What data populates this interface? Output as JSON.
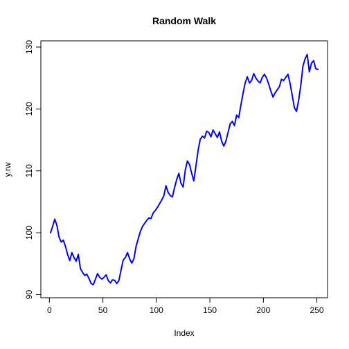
{
  "chart_data": {
    "type": "line",
    "title": "Random Walk",
    "xlabel": "Index",
    "ylabel": "y.rw",
    "xlim": [
      -8,
      260
    ],
    "ylim": [
      89.5,
      131
    ],
    "xticks": [
      0,
      50,
      100,
      150,
      200,
      250
    ],
    "yticks": [
      90,
      100,
      110,
      120,
      130
    ],
    "grid": false,
    "legend": "none",
    "line_color": "#0000ff",
    "series": [
      {
        "x": [
          1,
          3,
          5,
          7,
          9,
          11,
          13,
          15,
          17,
          19,
          21,
          23,
          25,
          27,
          29,
          31,
          33,
          35,
          37,
          39,
          41,
          43,
          45,
          47,
          49,
          51,
          53,
          55,
          57,
          59,
          61,
          63,
          65,
          67,
          69,
          71,
          73,
          75,
          77,
          79,
          81,
          83,
          85,
          87,
          89,
          91,
          93,
          95,
          97,
          99,
          101,
          103,
          105,
          107,
          109,
          111,
          113,
          115,
          117,
          119,
          121,
          123,
          125,
          127,
          129,
          131,
          133,
          135,
          137,
          139,
          141,
          143,
          145,
          147,
          149,
          151,
          153,
          155,
          157,
          159,
          161,
          163,
          165,
          167,
          169,
          171,
          173,
          175,
          177,
          179,
          181,
          183,
          185,
          187,
          189,
          191,
          193,
          195,
          197,
          199,
          201,
          203,
          205,
          207,
          209,
          211,
          213,
          215,
          217,
          219,
          221,
          223,
          225,
          227,
          229,
          231,
          233,
          235,
          237,
          239,
          241,
          243,
          245,
          247,
          249,
          251
        ],
        "values": [
          100.0,
          101.0,
          102.2,
          101.2,
          99.3,
          98.5,
          98.8,
          97.8,
          96.5,
          95.5,
          96.8,
          96.0,
          95.4,
          96.5,
          94.2,
          93.6,
          93.1,
          93.3,
          92.6,
          91.8,
          91.6,
          92.5,
          93.4,
          92.8,
          92.5,
          92.8,
          93.2,
          92.3,
          91.9,
          92.4,
          92.3,
          91.8,
          92.3,
          94.0,
          95.6,
          96.0,
          96.8,
          95.8,
          95.1,
          95.8,
          97.8,
          99.0,
          100.2,
          101.0,
          101.5,
          102.0,
          102.4,
          102.3,
          103.2,
          103.6,
          104.1,
          104.7,
          105.3,
          106.0,
          107.6,
          106.5,
          106.0,
          105.8,
          107.3,
          108.6,
          109.6,
          108.0,
          107.4,
          110.1,
          111.6,
          111.0,
          109.6,
          108.4,
          110.8,
          113.3,
          115.1,
          115.6,
          115.3,
          116.4,
          116.2,
          115.5,
          116.6,
          116.0,
          115.4,
          116.3,
          114.8,
          114.0,
          114.8,
          116.2,
          117.6,
          118.0,
          117.3,
          119.0,
          118.6,
          120.6,
          122.5,
          124.2,
          125.2,
          124.2,
          124.6,
          125.7,
          125.0,
          124.5,
          124.2,
          125.1,
          125.6,
          125.0,
          124.0,
          122.9,
          121.9,
          122.6,
          123.1,
          123.6,
          124.8,
          124.6,
          125.1,
          125.6,
          124.1,
          122.2,
          120.2,
          119.6,
          121.4,
          123.8,
          126.9,
          128.1,
          128.8,
          126.0,
          127.4,
          127.8,
          126.5,
          126.4
        ]
      }
    ]
  }
}
